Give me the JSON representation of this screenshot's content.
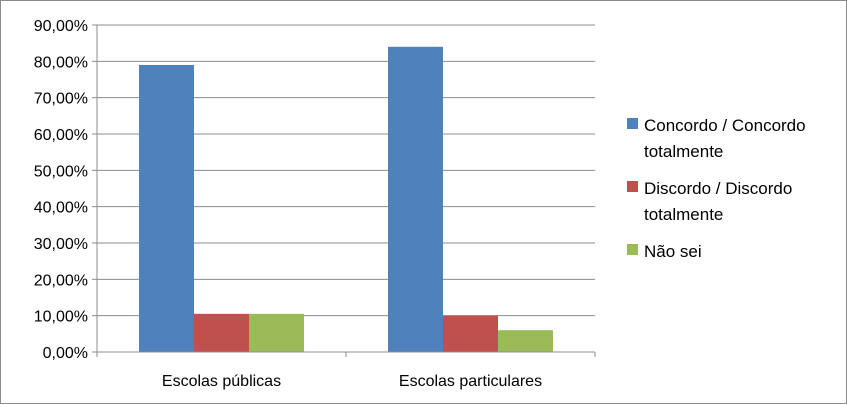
{
  "chart_data": {
    "type": "bar",
    "categories": [
      "Escolas públicas",
      "Escolas particulares"
    ],
    "series": [
      {
        "name": "Concordo / Concordo totalmente",
        "values": [
          79,
          84
        ],
        "color": "#4f81bd"
      },
      {
        "name": "Discordo / Discordo totalmente",
        "values": [
          10.5,
          10
        ],
        "color": "#c0504d"
      },
      {
        "name": "Não sei",
        "values": [
          10.5,
          6
        ],
        "color": "#9bbb59"
      }
    ],
    "y_ticks": [
      "0,00%",
      "10,00%",
      "20,00%",
      "30,00%",
      "40,00%",
      "50,00%",
      "60,00%",
      "70,00%",
      "80,00%",
      "90,00%"
    ],
    "ylim": [
      0,
      90
    ],
    "grid": true,
    "legend_position": "right",
    "legend": {
      "entries": [
        {
          "lines": [
            "Concordo / Concordo",
            "totalmente"
          ]
        },
        {
          "lines": [
            "Discordo / Discordo",
            "totalmente"
          ]
        },
        {
          "lines": [
            "Não sei"
          ]
        }
      ]
    },
    "title": "",
    "xlabel": "",
    "ylabel": ""
  }
}
